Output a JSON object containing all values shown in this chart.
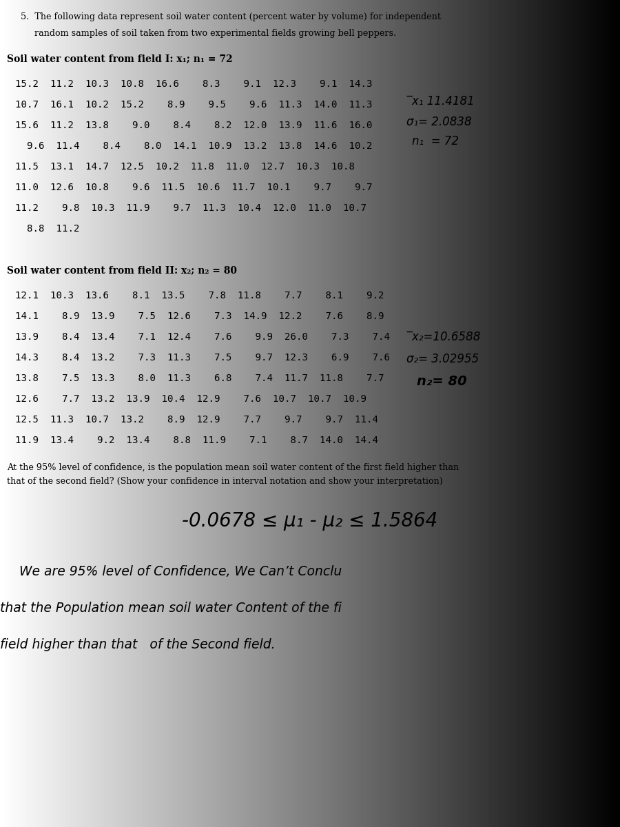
{
  "bg_color": "#cdc8c0",
  "title_line1": "5.  The following data represent soil water content (percent water by volume) for independent",
  "title_line2": "     random samples of soil taken from two experimental fields growing bell peppers.",
  "field1_header": "Soil water content from field I: x₁; n₁ = 72",
  "field1_rows": [
    "15.2  11.2  10.3  10.8  16.6    8.3    9.1  12.3    9.1  14.3",
    "10.7  16.1  10.2  15.2    8.9    9.5    9.6  11.3  14.0  11.3",
    "15.6  11.2  13.8    9.0    8.4    8.2  12.0  13.9  11.6  16.0",
    "  9.6  11.4    8.4    8.0  14.1  10.9  13.2  13.8  14.6  10.2",
    "11.5  13.1  14.7  12.5  10.2  11.8  11.0  12.7  10.3  10.8",
    "11.0  12.6  10.8    9.6  11.5  10.6  11.7  10.1    9.7    9.7",
    "11.2    9.8  10.3  11.9    9.7  11.3  10.4  12.0  11.0  10.7",
    "  8.8  11.2"
  ],
  "field1_stat1": "̅x₁ 11.4181",
  "field1_stat2": "σ₁= 2.0838",
  "field1_stat3": "n₁  = 72",
  "field2_header": "Soil water content from field II: x₂; n₂ = 80",
  "field2_rows": [
    "12.1  10.3  13.6    8.1  13.5    7.8  11.8    7.7    8.1    9.2",
    "14.1    8.9  13.9    7.5  12.6    7.3  14.9  12.2    7.6    8.9",
    "13.9    8.4  13.4    7.1  12.4    7.6    9.9  26.0    7.3    7.4",
    "14.3    8.4  13.2    7.3  11.3    7.5    9.7  12.3    6.9    7.6",
    "13.8    7.5  13.3    8.0  11.3    6.8    7.4  11.7  11.8    7.7",
    "12.6    7.7  13.2  13.9  10.4  12.9    7.6  10.7  10.7  10.9",
    "12.5  11.3  10.7  13.2    8.9  12.9    7.7    9.7    9.7  11.4",
    "11.9  13.4    9.2  13.4    8.8  11.9    7.1    8.7  14.0  14.4"
  ],
  "field2_stat1": "̅x₂=10.6588",
  "field2_stat2": "σ₂= 3.02955",
  "field2_stat3": "n₂= 80",
  "question_line1": "At the 95% level of confidence, is the population mean soil water content of the first field higher than",
  "question_line2": "that of the second field? (Show your confidence in interval notation and show your interpretation)",
  "interval": "-0.0678 ≤ μ₁ - μ₂ ≤ 1.5864",
  "hw_line1": "We are 95% level of Confidence, We Can’t Conclu",
  "hw_line2": "that the Population mean soil water Content of the fi",
  "hw_line3": "field higher than that   of the Second field."
}
